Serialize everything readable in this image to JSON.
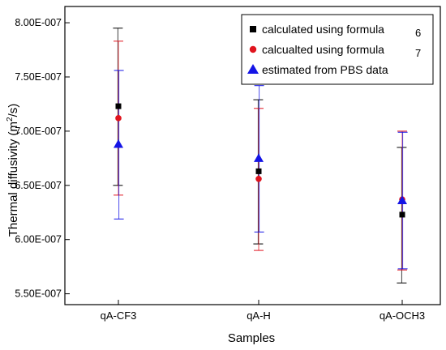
{
  "chart_data": {
    "type": "scatter",
    "title": "",
    "xlabel": "Samples",
    "ylabel_main": "Thermal diffusivity (m",
    "ylabel_sup": "2",
    "ylabel_tail": "/s)",
    "categories": [
      "qA-CF3",
      "qA-H",
      "qA-OCH3"
    ],
    "ylim": [
      5.4e-07,
      8.15e-07
    ],
    "yticks": [
      5.5e-07,
      6e-07,
      6.5e-07,
      7e-07,
      7.5e-07,
      8e-07
    ],
    "ytick_labels": [
      "5.50E-007",
      "6.00E-007",
      "6.50E-007",
      "7.00E-007",
      "7.50E-007",
      "8.00E-007"
    ],
    "grid": false,
    "legend_position": "top-right",
    "series": [
      {
        "name": "calculated using formula",
        "legend_ref": "6",
        "marker": "square",
        "color": "#000000",
        "values": [
          7.23e-07,
          6.63e-07,
          6.23e-07
        ],
        "err_low": [
          6.5e-07,
          5.96e-07,
          5.6e-07
        ],
        "err_high": [
          7.95e-07,
          7.29e-07,
          6.85e-07
        ]
      },
      {
        "name": "calcualted using formula",
        "legend_ref": "7",
        "marker": "circle",
        "color": "#e0141e",
        "values": [
          7.12e-07,
          6.56e-07,
          6.37e-07
        ],
        "err_low": [
          6.41e-07,
          5.9e-07,
          5.72e-07
        ],
        "err_high": [
          7.83e-07,
          7.21e-07,
          7e-07
        ]
      },
      {
        "name": "estimated from PBS data",
        "legend_ref": "",
        "marker": "triangle",
        "color": "#1414e6",
        "values": [
          6.88e-07,
          6.75e-07,
          6.36e-07
        ],
        "err_low": [
          6.19e-07,
          6.07e-07,
          5.73e-07
        ],
        "err_high": [
          7.56e-07,
          7.42e-07,
          6.99e-07
        ]
      }
    ]
  }
}
